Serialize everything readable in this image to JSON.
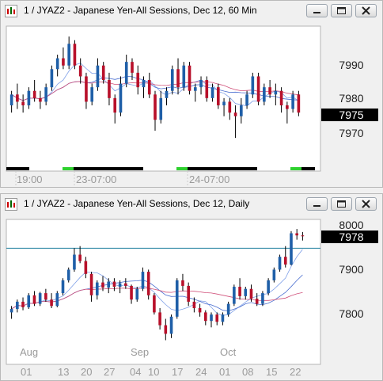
{
  "windows": [
    {
      "title": "1 / JYAZ2 - Japanese Yen-All Sessions, Dec 12, 60 Min",
      "price_labels": [
        "7990",
        "7980",
        "7970"
      ],
      "current_price": "7975",
      "time_labels": [
        "19:00",
        "23-07:00",
        "24-07:00"
      ]
    },
    {
      "title": "1 / JYAZ2 - Japanese Yen-All Sessions, Dec 12, Daily",
      "price_labels": [
        "8000",
        "7900",
        "7800"
      ],
      "current_price": "7978",
      "month_labels": [
        "Aug",
        "Sep",
        "Oct"
      ],
      "day_labels": [
        "01",
        "13",
        "20",
        "27",
        "04",
        "10",
        "17",
        "24",
        "01",
        "08",
        "15",
        "22"
      ]
    }
  ],
  "window_buttons": {
    "minimize": "minimize-icon",
    "restore": "restore-icon",
    "close": "close-icon"
  },
  "chart_data": [
    {
      "type": "candlestick",
      "title": "1 / JYAZ2 - Japanese Yen-All Sessions, Dec 12, 60 Min",
      "y_ticks": [
        7970,
        7980,
        7990
      ],
      "y_range": [
        7963,
        7998
      ],
      "last_price": 7975,
      "x_labels": [
        "19:00",
        "23-07:00",
        "24-07:00"
      ],
      "candles": [
        {
          "o": 7977,
          "h": 7981,
          "l": 7975,
          "c": 7980
        },
        {
          "o": 7980,
          "h": 7983,
          "l": 7976,
          "c": 7978
        },
        {
          "o": 7978,
          "h": 7980,
          "l": 7975,
          "c": 7977
        },
        {
          "o": 7977,
          "h": 7982,
          "l": 7976,
          "c": 7981
        },
        {
          "o": 7981,
          "h": 7984,
          "l": 7978,
          "c": 7979
        },
        {
          "o": 7979,
          "h": 7981,
          "l": 7976,
          "c": 7978
        },
        {
          "o": 7978,
          "h": 7983,
          "l": 7977,
          "c": 7982
        },
        {
          "o": 7982,
          "h": 7988,
          "l": 7981,
          "c": 7987
        },
        {
          "o": 7987,
          "h": 7991,
          "l": 7985,
          "c": 7990
        },
        {
          "o": 7990,
          "h": 7993,
          "l": 7987,
          "c": 7988
        },
        {
          "o": 7988,
          "h": 7996,
          "l": 7987,
          "c": 7994
        },
        {
          "o": 7994,
          "h": 7995,
          "l": 7987,
          "c": 7988
        },
        {
          "o": 7988,
          "h": 7990,
          "l": 7983,
          "c": 7985
        },
        {
          "o": 7985,
          "h": 7986,
          "l": 7976,
          "c": 7978
        },
        {
          "o": 7978,
          "h": 7983,
          "l": 7977,
          "c": 7982
        },
        {
          "o": 7982,
          "h": 7990,
          "l": 7981,
          "c": 7988
        },
        {
          "o": 7988,
          "h": 7989,
          "l": 7983,
          "c": 7984
        },
        {
          "o": 7984,
          "h": 7986,
          "l": 7977,
          "c": 7979
        },
        {
          "o": 7979,
          "h": 7980,
          "l": 7972,
          "c": 7975
        },
        {
          "o": 7975,
          "h": 7985,
          "l": 7974,
          "c": 7983
        },
        {
          "o": 7983,
          "h": 7991,
          "l": 7982,
          "c": 7989
        },
        {
          "o": 7989,
          "h": 7990,
          "l": 7984,
          "c": 7986
        },
        {
          "o": 7986,
          "h": 7988,
          "l": 7980,
          "c": 7982
        },
        {
          "o": 7982,
          "h": 7985,
          "l": 7979,
          "c": 7984
        },
        {
          "o": 7984,
          "h": 7986,
          "l": 7979,
          "c": 7980
        },
        {
          "o": 7980,
          "h": 7981,
          "l": 7970,
          "c": 7973
        },
        {
          "o": 7973,
          "h": 7981,
          "l": 7972,
          "c": 7979
        },
        {
          "o": 7979,
          "h": 7982,
          "l": 7977,
          "c": 7981
        },
        {
          "o": 7981,
          "h": 7988,
          "l": 7980,
          "c": 7987
        },
        {
          "o": 7987,
          "h": 7990,
          "l": 7980,
          "c": 7982
        },
        {
          "o": 7982,
          "h": 7989,
          "l": 7981,
          "c": 7988
        },
        {
          "o": 7988,
          "h": 7989,
          "l": 7980,
          "c": 7981
        },
        {
          "o": 7981,
          "h": 7983,
          "l": 7978,
          "c": 7982
        },
        {
          "o": 7982,
          "h": 7985,
          "l": 7980,
          "c": 7984
        },
        {
          "o": 7984,
          "h": 7985,
          "l": 7978,
          "c": 7979
        },
        {
          "o": 7979,
          "h": 7983,
          "l": 7978,
          "c": 7982
        },
        {
          "o": 7982,
          "h": 7983,
          "l": 7976,
          "c": 7977
        },
        {
          "o": 7977,
          "h": 7979,
          "l": 7974,
          "c": 7978
        },
        {
          "o": 7978,
          "h": 7979,
          "l": 7973,
          "c": 7975
        },
        {
          "o": 7975,
          "h": 7977,
          "l": 7968,
          "c": 7974
        },
        {
          "o": 7974,
          "h": 7979,
          "l": 7972,
          "c": 7977
        },
        {
          "o": 7977,
          "h": 7981,
          "l": 7976,
          "c": 7980
        },
        {
          "o": 7980,
          "h": 7986,
          "l": 7979,
          "c": 7985
        },
        {
          "o": 7985,
          "h": 7986,
          "l": 7977,
          "c": 7978
        },
        {
          "o": 7978,
          "h": 7983,
          "l": 7977,
          "c": 7982
        },
        {
          "o": 7982,
          "h": 7984,
          "l": 7979,
          "c": 7980
        },
        {
          "o": 7980,
          "h": 7983,
          "l": 7977,
          "c": 7981
        },
        {
          "o": 7981,
          "h": 7982,
          "l": 7975,
          "c": 7977
        },
        {
          "o": 7977,
          "h": 7978,
          "l": 7972,
          "c": 7976
        },
        {
          "o": 7976,
          "h": 7981,
          "l": 7975,
          "c": 7980
        },
        {
          "o": 7980,
          "h": 7981,
          "l": 7974,
          "c": 7975
        }
      ]
    },
    {
      "type": "candlestick",
      "title": "1 / JYAZ2 - Japanese Yen-All Sessions, Dec 12, Daily",
      "y_ticks": [
        7800,
        7900,
        8000
      ],
      "y_range": [
        7710,
        8010
      ],
      "last_price": 7978,
      "horizontal_line": 7950,
      "x_labels": [
        "01",
        "13",
        "20",
        "27",
        "04",
        "10",
        "17",
        "24",
        "01",
        "08",
        "15",
        "22"
      ],
      "month_labels": [
        "Aug",
        "Sep",
        "Oct"
      ],
      "candles": [
        {
          "o": 7800,
          "h": 7815,
          "l": 7785,
          "c": 7808
        },
        {
          "o": 7808,
          "h": 7830,
          "l": 7800,
          "c": 7825
        },
        {
          "o": 7825,
          "h": 7835,
          "l": 7805,
          "c": 7812
        },
        {
          "o": 7812,
          "h": 7845,
          "l": 7808,
          "c": 7840
        },
        {
          "o": 7840,
          "h": 7850,
          "l": 7815,
          "c": 7820
        },
        {
          "o": 7820,
          "h": 7848,
          "l": 7815,
          "c": 7845
        },
        {
          "o": 7845,
          "h": 7855,
          "l": 7825,
          "c": 7830
        },
        {
          "o": 7830,
          "h": 7845,
          "l": 7810,
          "c": 7815
        },
        {
          "o": 7815,
          "h": 7850,
          "l": 7812,
          "c": 7845
        },
        {
          "o": 7845,
          "h": 7880,
          "l": 7840,
          "c": 7875
        },
        {
          "o": 7875,
          "h": 7905,
          "l": 7870,
          "c": 7900
        },
        {
          "o": 7900,
          "h": 7950,
          "l": 7895,
          "c": 7935
        },
        {
          "o": 7935,
          "h": 7955,
          "l": 7915,
          "c": 7920
        },
        {
          "o": 7920,
          "h": 7930,
          "l": 7880,
          "c": 7890
        },
        {
          "o": 7890,
          "h": 7895,
          "l": 7825,
          "c": 7840
        },
        {
          "o": 7840,
          "h": 7875,
          "l": 7830,
          "c": 7870
        },
        {
          "o": 7870,
          "h": 7885,
          "l": 7850,
          "c": 7858
        },
        {
          "o": 7858,
          "h": 7880,
          "l": 7845,
          "c": 7872
        },
        {
          "o": 7872,
          "h": 7880,
          "l": 7850,
          "c": 7860
        },
        {
          "o": 7860,
          "h": 7875,
          "l": 7845,
          "c": 7868
        },
        {
          "o": 7868,
          "h": 7880,
          "l": 7855,
          "c": 7862
        },
        {
          "o": 7862,
          "h": 7865,
          "l": 7820,
          "c": 7830
        },
        {
          "o": 7830,
          "h": 7860,
          "l": 7825,
          "c": 7855
        },
        {
          "o": 7855,
          "h": 7905,
          "l": 7850,
          "c": 7895
        },
        {
          "o": 7895,
          "h": 7900,
          "l": 7830,
          "c": 7840
        },
        {
          "o": 7840,
          "h": 7845,
          "l": 7795,
          "c": 7800
        },
        {
          "o": 7800,
          "h": 7810,
          "l": 7760,
          "c": 7770
        },
        {
          "o": 7770,
          "h": 7785,
          "l": 7735,
          "c": 7750
        },
        {
          "o": 7750,
          "h": 7795,
          "l": 7740,
          "c": 7790
        },
        {
          "o": 7790,
          "h": 7880,
          "l": 7785,
          "c": 7875
        },
        {
          "o": 7875,
          "h": 7890,
          "l": 7850,
          "c": 7862
        },
        {
          "o": 7862,
          "h": 7870,
          "l": 7815,
          "c": 7825
        },
        {
          "o": 7825,
          "h": 7835,
          "l": 7800,
          "c": 7810
        },
        {
          "o": 7810,
          "h": 7820,
          "l": 7790,
          "c": 7800
        },
        {
          "o": 7800,
          "h": 7805,
          "l": 7770,
          "c": 7780
        },
        {
          "o": 7780,
          "h": 7800,
          "l": 7765,
          "c": 7795
        },
        {
          "o": 7795,
          "h": 7800,
          "l": 7770,
          "c": 7778
        },
        {
          "o": 7778,
          "h": 7800,
          "l": 7770,
          "c": 7795
        },
        {
          "o": 7795,
          "h": 7825,
          "l": 7790,
          "c": 7820
        },
        {
          "o": 7820,
          "h": 7865,
          "l": 7815,
          "c": 7860
        },
        {
          "o": 7860,
          "h": 7880,
          "l": 7830,
          "c": 7838
        },
        {
          "o": 7838,
          "h": 7860,
          "l": 7830,
          "c": 7855
        },
        {
          "o": 7855,
          "h": 7865,
          "l": 7825,
          "c": 7832
        },
        {
          "o": 7832,
          "h": 7845,
          "l": 7815,
          "c": 7820
        },
        {
          "o": 7820,
          "h": 7850,
          "l": 7815,
          "c": 7845
        },
        {
          "o": 7845,
          "h": 7880,
          "l": 7840,
          "c": 7875
        },
        {
          "o": 7875,
          "h": 7905,
          "l": 7870,
          "c": 7900
        },
        {
          "o": 7900,
          "h": 7935,
          "l": 7895,
          "c": 7930
        },
        {
          "o": 7930,
          "h": 7955,
          "l": 7905,
          "c": 7912
        },
        {
          "o": 7912,
          "h": 7990,
          "l": 7910,
          "c": 7985
        },
        {
          "o": 7985,
          "h": 7995,
          "l": 7970,
          "c": 7980
        },
        {
          "o": 7980,
          "h": 7988,
          "l": 7968,
          "c": 7978
        }
      ]
    }
  ]
}
